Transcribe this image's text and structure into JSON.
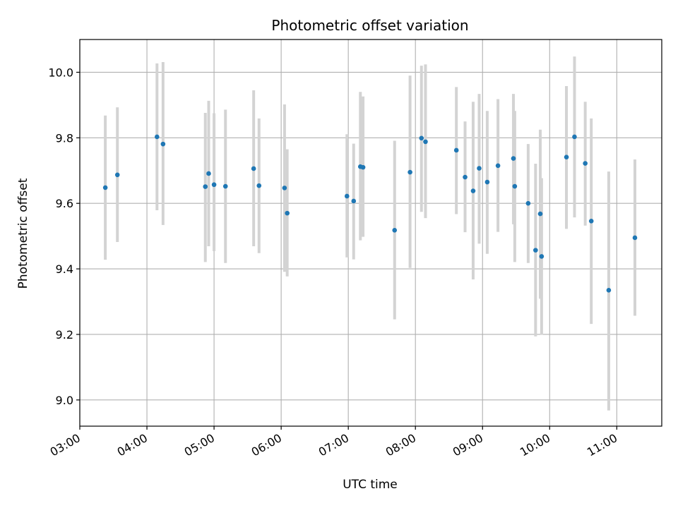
{
  "chart_data": {
    "type": "scatter",
    "title": "Photometric offset variation",
    "xlabel": "UTC time",
    "ylabel": "Photometric offset",
    "x_unit": "hours UTC",
    "xlim": [
      3.0,
      11.67
    ],
    "ylim": [
      8.92,
      10.1
    ],
    "x_ticks": [
      {
        "value": 3,
        "label": "03:00"
      },
      {
        "value": 4,
        "label": "04:00"
      },
      {
        "value": 5,
        "label": "05:00"
      },
      {
        "value": 6,
        "label": "06:00"
      },
      {
        "value": 7,
        "label": "07:00"
      },
      {
        "value": 8,
        "label": "08:00"
      },
      {
        "value": 9,
        "label": "09:00"
      },
      {
        "value": 10,
        "label": "10:00"
      },
      {
        "value": 11,
        "label": "11:00"
      }
    ],
    "y_ticks": [
      {
        "value": 9.0,
        "label": "9.0"
      },
      {
        "value": 9.2,
        "label": "9.2"
      },
      {
        "value": 9.4,
        "label": "9.4"
      },
      {
        "value": 9.6,
        "label": "9.6"
      },
      {
        "value": 9.8,
        "label": "9.8"
      },
      {
        "value": 10.0,
        "label": "10.0"
      }
    ],
    "grid": true,
    "marker_color": "#1f77b4",
    "errorbar_color": "#d3d3d3",
    "points": [
      {
        "x": 3.38,
        "y": 9.648,
        "ylow": 9.428,
        "yhigh": 9.868
      },
      {
        "x": 3.56,
        "y": 9.687,
        "ylow": 9.482,
        "yhigh": 9.893
      },
      {
        "x": 4.15,
        "y": 9.803,
        "ylow": 9.579,
        "yhigh": 10.027
      },
      {
        "x": 4.24,
        "y": 9.781,
        "ylow": 9.534,
        "yhigh": 10.031
      },
      {
        "x": 4.87,
        "y": 9.651,
        "ylow": 9.421,
        "yhigh": 9.876
      },
      {
        "x": 4.92,
        "y": 9.691,
        "ylow": 9.469,
        "yhigh": 9.913
      },
      {
        "x": 5.0,
        "y": 9.657,
        "ylow": 9.454,
        "yhigh": 9.875
      },
      {
        "x": 5.17,
        "y": 9.652,
        "ylow": 9.418,
        "yhigh": 9.886
      },
      {
        "x": 5.59,
        "y": 9.706,
        "ylow": 9.469,
        "yhigh": 9.945
      },
      {
        "x": 5.67,
        "y": 9.654,
        "ylow": 9.448,
        "yhigh": 9.859
      },
      {
        "x": 6.05,
        "y": 9.647,
        "ylow": 9.391,
        "yhigh": 9.902
      },
      {
        "x": 6.09,
        "y": 9.57,
        "ylow": 9.377,
        "yhigh": 9.765
      },
      {
        "x": 6.98,
        "y": 9.622,
        "ylow": 9.435,
        "yhigh": 9.811
      },
      {
        "x": 7.08,
        "y": 9.607,
        "ylow": 9.429,
        "yhigh": 9.782
      },
      {
        "x": 7.18,
        "y": 9.712,
        "ylow": 9.487,
        "yhigh": 9.94
      },
      {
        "x": 7.22,
        "y": 9.71,
        "ylow": 9.498,
        "yhigh": 9.926
      },
      {
        "x": 7.69,
        "y": 9.518,
        "ylow": 9.246,
        "yhigh": 9.791
      },
      {
        "x": 7.92,
        "y": 9.695,
        "ylow": 9.403,
        "yhigh": 9.99
      },
      {
        "x": 8.09,
        "y": 9.799,
        "ylow": 9.574,
        "yhigh": 10.02
      },
      {
        "x": 8.15,
        "y": 9.788,
        "ylow": 9.555,
        "yhigh": 10.024
      },
      {
        "x": 8.61,
        "y": 9.762,
        "ylow": 9.567,
        "yhigh": 9.955
      },
      {
        "x": 8.74,
        "y": 9.68,
        "ylow": 9.512,
        "yhigh": 9.85
      },
      {
        "x": 8.86,
        "y": 9.638,
        "ylow": 9.368,
        "yhigh": 9.91
      },
      {
        "x": 8.95,
        "y": 9.707,
        "ylow": 9.477,
        "yhigh": 9.934
      },
      {
        "x": 9.07,
        "y": 9.665,
        "ylow": 9.446,
        "yhigh": 9.882
      },
      {
        "x": 9.23,
        "y": 9.715,
        "ylow": 9.513,
        "yhigh": 9.918
      },
      {
        "x": 9.46,
        "y": 9.737,
        "ylow": 9.536,
        "yhigh": 9.934
      },
      {
        "x": 9.48,
        "y": 9.652,
        "ylow": 9.421,
        "yhigh": 9.882
      },
      {
        "x": 9.68,
        "y": 9.6,
        "ylow": 9.418,
        "yhigh": 9.781
      },
      {
        "x": 9.79,
        "y": 9.457,
        "ylow": 9.194,
        "yhigh": 9.721
      },
      {
        "x": 9.86,
        "y": 9.568,
        "ylow": 9.309,
        "yhigh": 9.825
      },
      {
        "x": 9.88,
        "y": 9.438,
        "ylow": 9.199,
        "yhigh": 9.677
      },
      {
        "x": 10.25,
        "y": 9.741,
        "ylow": 9.522,
        "yhigh": 9.958
      },
      {
        "x": 10.37,
        "y": 9.803,
        "ylow": 9.557,
        "yhigh": 10.048
      },
      {
        "x": 10.53,
        "y": 9.722,
        "ylow": 9.532,
        "yhigh": 9.91
      },
      {
        "x": 10.62,
        "y": 9.546,
        "ylow": 9.232,
        "yhigh": 9.859
      },
      {
        "x": 10.88,
        "y": 9.335,
        "ylow": 8.968,
        "yhigh": 9.697
      },
      {
        "x": 11.27,
        "y": 9.495,
        "ylow": 9.257,
        "yhigh": 9.734
      }
    ]
  }
}
